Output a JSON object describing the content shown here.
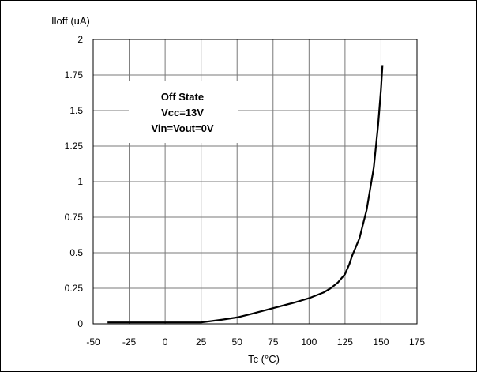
{
  "chart_data": {
    "type": "line",
    "title": "",
    "xlabel": "Tc (°C)",
    "ylabel": "Iloff (uA)",
    "xlim": [
      -50,
      175
    ],
    "ylim": [
      0,
      2
    ],
    "x_ticks": [
      -50,
      -25,
      0,
      25,
      50,
      75,
      100,
      125,
      150,
      175
    ],
    "y_ticks": [
      0,
      0.25,
      0.5,
      0.75,
      1,
      1.25,
      1.5,
      1.75,
      2
    ],
    "x_tick_labels": [
      "-50",
      "-25",
      "0",
      "25",
      "50",
      "75",
      "100",
      "125",
      "150",
      "175"
    ],
    "y_tick_labels": [
      "0",
      "0.25",
      "0.5",
      "0.75",
      "1",
      "1.25",
      "1.5",
      "1.75",
      "2"
    ],
    "grid": true,
    "annotation": [
      "Off State",
      "Vcc=13V",
      "Vin=Vout=0V"
    ],
    "series": [
      {
        "color": "#000000",
        "x": [
          -40,
          -25,
          0,
          25,
          40,
          50,
          60,
          75,
          90,
          100,
          110,
          115,
          120,
          125,
          128,
          130,
          135,
          140,
          145,
          148,
          150,
          151
        ],
        "y": [
          0.01,
          0.01,
          0.01,
          0.01,
          0.03,
          0.045,
          0.07,
          0.11,
          0.15,
          0.18,
          0.22,
          0.25,
          0.29,
          0.35,
          0.42,
          0.48,
          0.6,
          0.8,
          1.1,
          1.4,
          1.65,
          1.82
        ]
      }
    ]
  }
}
